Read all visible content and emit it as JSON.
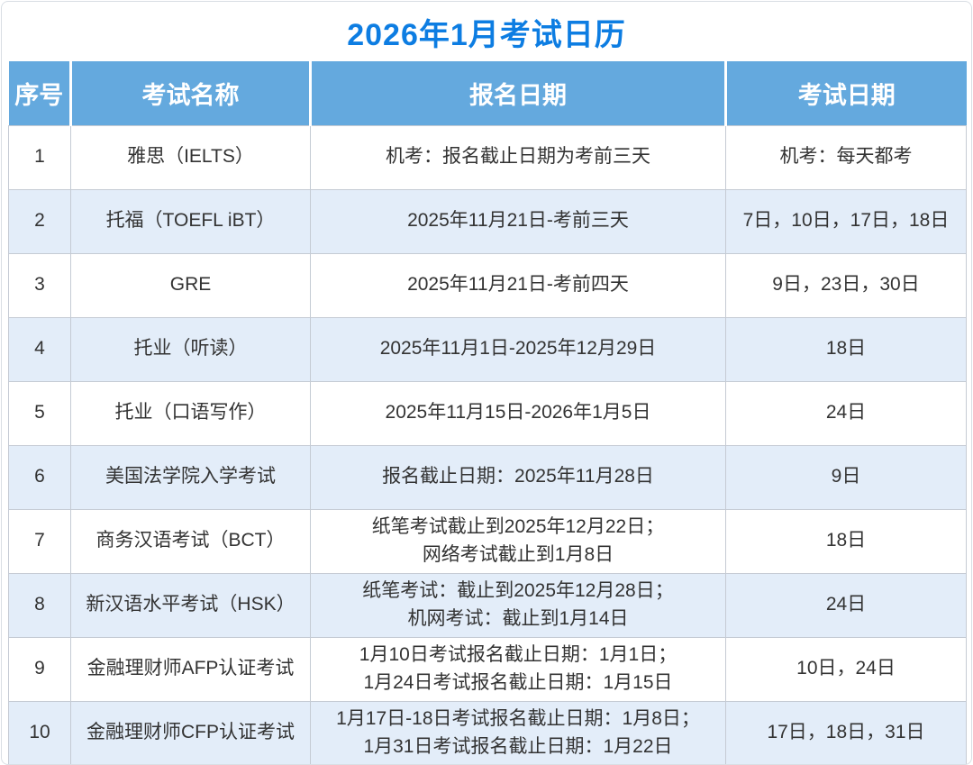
{
  "title": "2026年1月考试日历",
  "colors": {
    "title_text": "#0d7de2",
    "header_bg": "#64a9de",
    "header_text": "#ffffff",
    "alt_row_bg": "#e3edf9",
    "body_text": "#333333",
    "grid_line": "#c5cbd4"
  },
  "table": {
    "headers": [
      "序号",
      "考试名称",
      "报名日期",
      "考试日期"
    ],
    "rows": [
      {
        "no": "1",
        "name": "雅思（IELTS）",
        "registration": "机考：报名截止日期为考前三天",
        "exam_dates": "机考：每天都考"
      },
      {
        "no": "2",
        "name": "托福（TOEFL iBT）",
        "registration": "2025年11月21日-考前三天",
        "exam_dates": "7日，10日，17日，18日"
      },
      {
        "no": "3",
        "name": "GRE",
        "registration": "2025年11月21日-考前四天",
        "exam_dates": "9日，23日，30日"
      },
      {
        "no": "4",
        "name": "托业（听读）",
        "registration": "2025年11月1日-2025年12月29日",
        "exam_dates": "18日"
      },
      {
        "no": "5",
        "name": "托业（口语写作）",
        "registration": "2025年11月15日-2026年1月5日",
        "exam_dates": "24日"
      },
      {
        "no": "6",
        "name": "美国法学院入学考试",
        "registration": "报名截止日期：2025年11月28日",
        "exam_dates": "9日"
      },
      {
        "no": "7",
        "name": "商务汉语考试（BCT）",
        "registration": "纸笔考试截止到2025年12月22日；\n网络考试截止到1月8日",
        "exam_dates": "18日"
      },
      {
        "no": "8",
        "name": "新汉语水平考试（HSK）",
        "registration": "纸笔考试：截止到2025年12月28日；\n机网考试：截止到1月14日",
        "exam_dates": "24日"
      },
      {
        "no": "9",
        "name": "金融理财师AFP认证考试",
        "registration": "1月10日考试报名截止日期：1月1日；\n1月24日考试报名截止日期：1月15日",
        "exam_dates": "10日，24日"
      },
      {
        "no": "10",
        "name": "金融理财师CFP认证考试",
        "registration": "1月17日-18日考试报名截止日期：1月8日；\n1月31日考试报名截止日期：1月22日",
        "exam_dates": "17日，18日，31日"
      }
    ]
  }
}
